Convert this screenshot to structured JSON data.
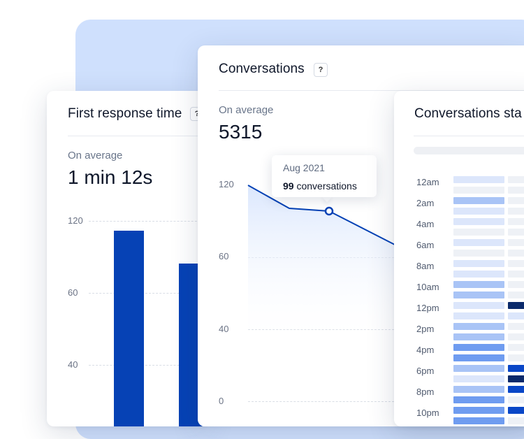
{
  "first_response": {
    "title": "First response time",
    "help": "?",
    "avg_label": "On average",
    "avg_value": "1 min 12s",
    "y_ticks": [
      "120",
      "60",
      "40"
    ]
  },
  "conversations": {
    "title": "Conversations",
    "help": "?",
    "avg_label": "On average",
    "avg_value": "5315",
    "y_ticks": [
      "120",
      "60",
      "40",
      "0"
    ],
    "tooltip": {
      "date": "Aug 2021",
      "count": "99",
      "unit": "conversations"
    },
    "line_color": "#0642b5"
  },
  "stats": {
    "title": "Conversations sta",
    "hours": [
      "12am",
      "2am",
      "4am",
      "6am",
      "8am",
      "10am",
      "12pm",
      "2pm",
      "4pm",
      "6pm",
      "8pm",
      "10pm"
    ]
  },
  "colors": {
    "accent": "#0642b5",
    "backdrop": "#cfe0fd"
  }
}
